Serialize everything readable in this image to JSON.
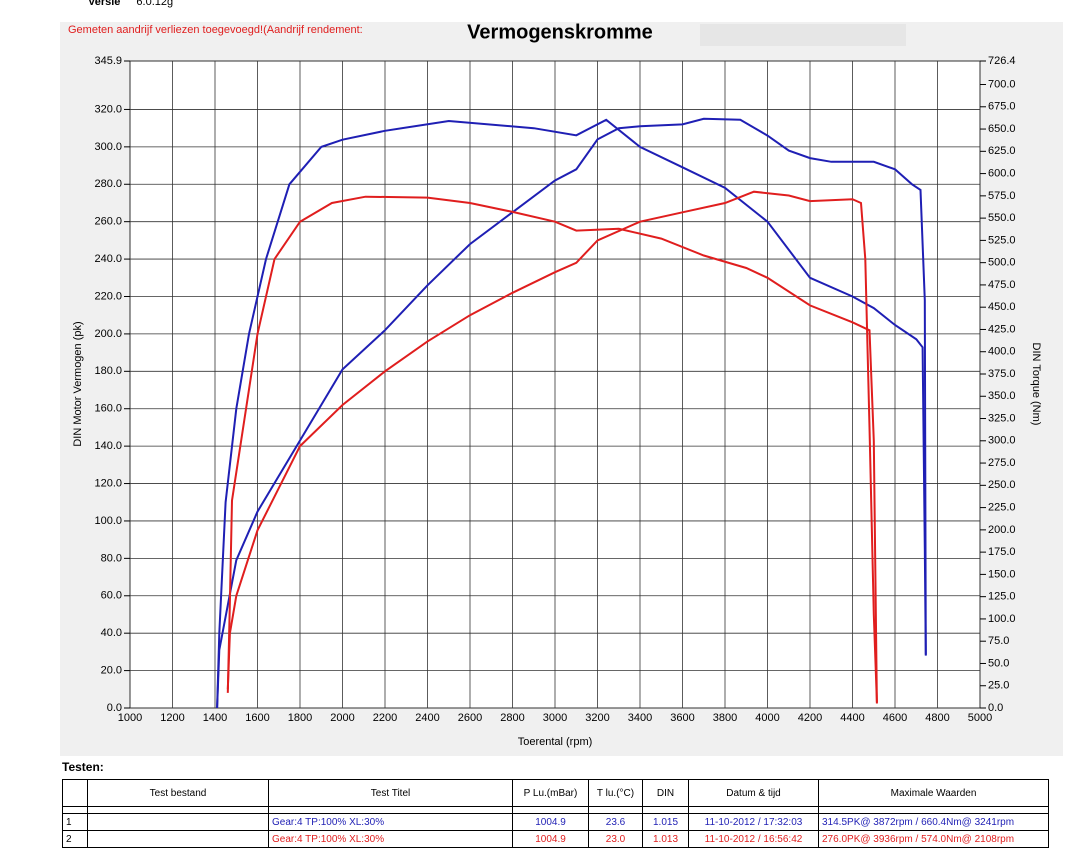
{
  "header": {
    "version_label": "Versie",
    "version": "6.0.12g"
  },
  "chart_data": {
    "type": "line",
    "title": "Vermogenskromme",
    "note": "Gemeten aandrijf verliezen toegevoegd!(Aandrijf rendement:",
    "xlabel": "Toerental (rpm)",
    "ylabel": "DIN Motor Vermogen (pk)",
    "y2label": "DIN Torque (Nm)",
    "grid": true,
    "xlim": [
      1000,
      5000
    ],
    "xticks": [
      1000,
      1200,
      1400,
      1600,
      1800,
      2000,
      2200,
      2400,
      2600,
      2800,
      3000,
      3200,
      3400,
      3600,
      3800,
      4000,
      4200,
      4400,
      4600,
      4800,
      5000
    ],
    "ylim": [
      0,
      345.9
    ],
    "yticks": [
      {
        "value": 0,
        "label": "0.0"
      },
      {
        "value": 20,
        "label": "20.0"
      },
      {
        "value": 40,
        "label": "40.0"
      },
      {
        "value": 60,
        "label": "60.0"
      },
      {
        "value": 80,
        "label": "80.0"
      },
      {
        "value": 100,
        "label": "100.0"
      },
      {
        "value": 120,
        "label": "120.0"
      },
      {
        "value": 140,
        "label": "140.0"
      },
      {
        "value": 160,
        "label": "160.0"
      },
      {
        "value": 180,
        "label": "180.0"
      },
      {
        "value": 200,
        "label": "200.0"
      },
      {
        "value": 220,
        "label": "220.0"
      },
      {
        "value": 240,
        "label": "240.0"
      },
      {
        "value": 260,
        "label": "260.0"
      },
      {
        "value": 280,
        "label": "280.0"
      },
      {
        "value": 300,
        "label": "300.0"
      },
      {
        "value": 320,
        "label": "320.0"
      },
      345.9
    ],
    "y2lim": [
      0,
      726.4
    ],
    "y2ticks": [
      {
        "value": 0,
        "label": "0.0"
      },
      {
        "value": 25,
        "label": "25.0"
      },
      {
        "value": 50,
        "label": "50.0"
      },
      {
        "value": 75,
        "label": "75.0"
      },
      {
        "value": 100,
        "label": "100.0"
      },
      {
        "value": 125,
        "label": "125.0"
      },
      {
        "value": 150,
        "label": "150.0"
      },
      {
        "value": 175,
        "label": "175.0"
      },
      {
        "value": 200,
        "label": "200.0"
      },
      {
        "value": 225,
        "label": "225.0"
      },
      {
        "value": 250,
        "label": "250.0"
      },
      {
        "value": 275,
        "label": "275.0"
      },
      {
        "value": 300,
        "label": "300.0"
      },
      {
        "value": 325,
        "label": "325.0"
      },
      {
        "value": 350,
        "label": "350.0"
      },
      {
        "value": 375,
        "label": "375.0"
      },
      {
        "value": 400,
        "label": "400.0"
      },
      {
        "value": 425,
        "label": "425.0"
      },
      {
        "value": 450,
        "label": "450.0"
      },
      {
        "value": 475,
        "label": "475.0"
      },
      {
        "value": 500,
        "label": "500.0"
      },
      {
        "value": 525,
        "label": "525.0"
      },
      {
        "value": 550,
        "label": "550.0"
      },
      {
        "value": 575,
        "label": "575.0"
      },
      {
        "value": 600,
        "label": "600.0"
      },
      {
        "value": 625,
        "label": "625.0"
      },
      {
        "value": 650,
        "label": "650.0"
      },
      {
        "value": 675,
        "label": "675.0"
      },
      {
        "value": 700,
        "label": "700.0"
      },
      726.4
    ],
    "series": [
      {
        "color": "#1f1fb4",
        "axis": "y2",
        "x": [
          1410,
          1420,
          1450,
          1500,
          1560,
          1640,
          1750,
          1900,
          2000,
          2200,
          2500,
          2900,
          3100,
          3241,
          3400,
          3600,
          3800,
          4000,
          4200,
          4400,
          4500,
          4600,
          4700,
          4730,
          4740,
          4745
        ],
        "values": [
          0,
          84,
          231,
          336,
          420,
          504,
          588,
          630,
          638,
          648,
          659,
          651,
          643,
          660.4,
          630,
          607,
          584,
          546,
          483,
          462,
          449,
          430,
          414,
          405,
          180,
          60
        ]
      },
      {
        "color": "#1f1fb4",
        "x": [
          1410,
          1420,
          1500,
          1600,
          1800,
          2000,
          2200,
          2400,
          2600,
          2800,
          3000,
          3100,
          3200,
          3300,
          3400,
          3600,
          3700,
          3872,
          4000,
          4100,
          4200,
          4300,
          4500,
          4600,
          4680,
          4720,
          4740,
          4745
        ],
        "values": [
          0,
          31,
          79,
          105,
          143,
          181,
          202,
          226,
          248,
          265,
          282,
          288,
          304,
          310,
          311,
          312,
          315,
          314.5,
          306,
          298,
          294,
          292,
          292,
          288,
          280,
          277,
          218,
          28
        ]
      },
      {
        "color": "#e01e1e",
        "axis": "y2",
        "x": [
          1460,
          1470,
          1480,
          1600,
          1680,
          1800,
          1950,
          2108,
          2400,
          2600,
          2800,
          3000,
          3100,
          3300,
          3500,
          3700,
          3900,
          4000,
          4200,
          4400,
          4480,
          4500,
          4510,
          4515
        ],
        "values": [
          17,
          120,
          233,
          420,
          504,
          546,
          567,
          574,
          573,
          567,
          557,
          546,
          536,
          538,
          527,
          508,
          494,
          483,
          452,
          433,
          424,
          300,
          100,
          5
        ]
      },
      {
        "color": "#e01e1e",
        "x": [
          1460,
          1470,
          1500,
          1600,
          1800,
          2000,
          2200,
          2400,
          2600,
          2800,
          3000,
          3100,
          3200,
          3400,
          3600,
          3800,
          3936,
          4100,
          4200,
          4400,
          4440,
          4460,
          4480,
          4500,
          4515
        ],
        "values": [
          10,
          40,
          60,
          95,
          140,
          162,
          180,
          196,
          210,
          222,
          233,
          238,
          250,
          260,
          265,
          270,
          276,
          274,
          271,
          272,
          270,
          240,
          150,
          50,
          3
        ]
      }
    ]
  },
  "table": {
    "label": "Testen:",
    "columns": [
      "Test bestand",
      "Test Titel",
      "P Lu.(mBar)",
      "T lu.(°C)",
      "DIN",
      "Datum & tijd",
      "Maximale Waarden"
    ],
    "rows": [
      {
        "number": "1",
        "title": "Gear:4 TP:100% XL:30%",
        "pressure": "1004.9",
        "temperature": "23.6",
        "din": "1.015",
        "datetime": "11-10-2012 / 17:32:03",
        "max": "314.5PK@ 3872rpm / 660.4Nm@ 3241rpm"
      },
      {
        "number": "2",
        "title": "Gear:4 TP:100% XL:30%",
        "pressure": "1004.9",
        "temperature": "23.0",
        "din": "1.013",
        "datetime": "11-10-2012 / 16:56:42",
        "max": "276.0PK@ 3936rpm / 574.0Nm@ 2108rpm"
      }
    ]
  }
}
